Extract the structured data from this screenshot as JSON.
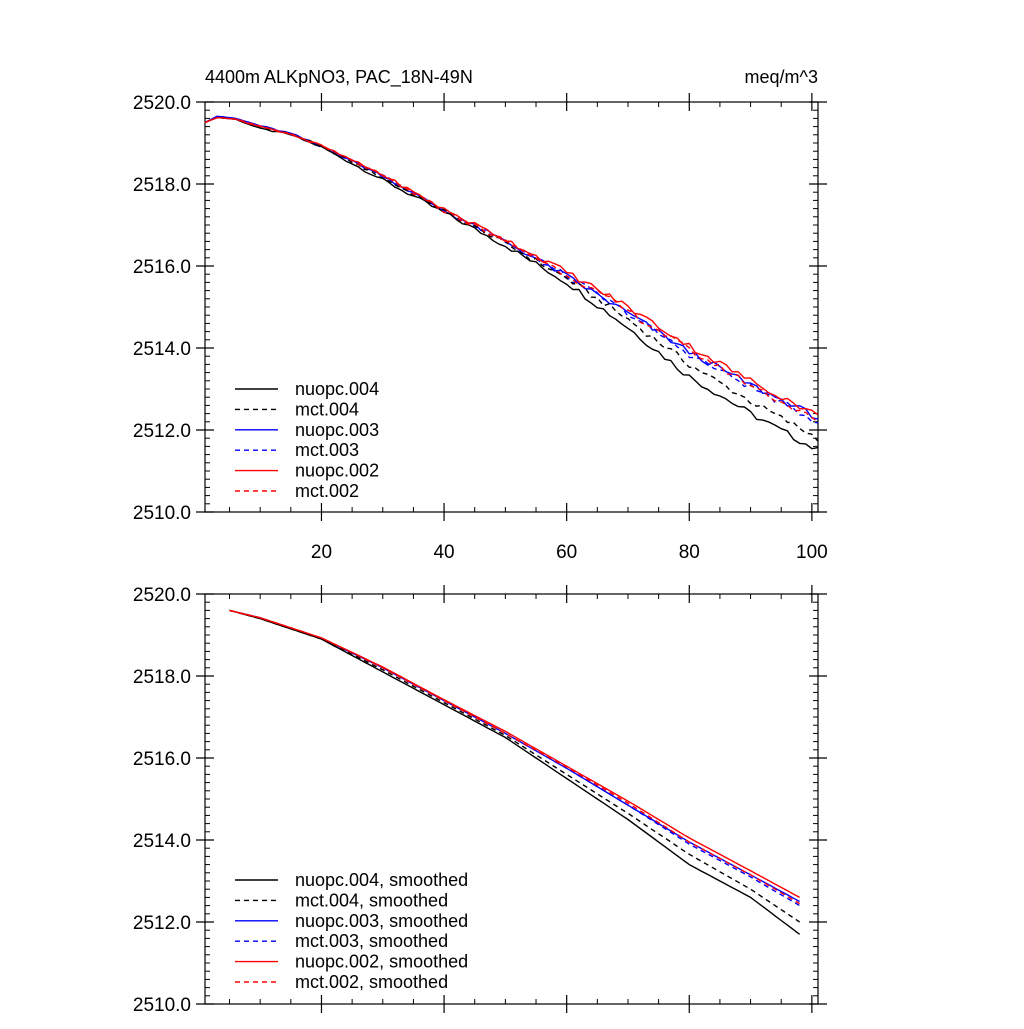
{
  "chart_data": [
    {
      "type": "line",
      "title": "4400m ALKpNO3, PAC_18N-49N",
      "units": "meq/m^3",
      "xlim": [
        1,
        101
      ],
      "ylim": [
        2510,
        2520
      ],
      "xticks": [
        20,
        40,
        60,
        80,
        100
      ],
      "xtick_labels": [
        "20",
        "40",
        "60",
        "80",
        "100"
      ],
      "yticks": [
        2510,
        2512,
        2514,
        2516,
        2518,
        2520
      ],
      "ytick_labels": [
        "2510.0",
        "2512.0",
        "2514.0",
        "2516.0",
        "2518.0",
        "2520.0"
      ],
      "legend_position": "bottom-left",
      "series": [
        {
          "name": "nuopc.004",
          "color": "#000000",
          "dash": "solid",
          "anchors": [
            [
              1,
              2519.5
            ],
            [
              3,
              2519.62
            ],
            [
              6,
              2519.58
            ],
            [
              10,
              2519.35
            ],
            [
              15,
              2519.2
            ],
            [
              20,
              2518.9
            ],
            [
              30,
              2518.1
            ],
            [
              40,
              2517.3
            ],
            [
              50,
              2516.5
            ],
            [
              60,
              2515.6
            ],
            [
              70,
              2514.5
            ],
            [
              80,
              2513.3
            ],
            [
              90,
              2512.4
            ],
            [
              101,
              2511.5
            ]
          ]
        },
        {
          "name": "mct.004",
          "color": "#000000",
          "dash": "dashed",
          "anchors": [
            [
              1,
              2519.5
            ],
            [
              3,
              2519.62
            ],
            [
              6,
              2519.58
            ],
            [
              10,
              2519.38
            ],
            [
              15,
              2519.22
            ],
            [
              20,
              2518.92
            ],
            [
              30,
              2518.15
            ],
            [
              40,
              2517.35
            ],
            [
              50,
              2516.55
            ],
            [
              60,
              2515.7
            ],
            [
              70,
              2514.7
            ],
            [
              80,
              2513.6
            ],
            [
              90,
              2512.7
            ],
            [
              101,
              2511.8
            ]
          ]
        },
        {
          "name": "nuopc.003",
          "color": "#0000ff",
          "dash": "solid",
          "anchors": [
            [
              1,
              2519.5
            ],
            [
              3,
              2519.65
            ],
            [
              6,
              2519.6
            ],
            [
              10,
              2519.42
            ],
            [
              15,
              2519.23
            ],
            [
              20,
              2518.92
            ],
            [
              30,
              2518.2
            ],
            [
              40,
              2517.35
            ],
            [
              50,
              2516.6
            ],
            [
              60,
              2515.75
            ],
            [
              70,
              2514.85
            ],
            [
              80,
              2513.9
            ],
            [
              90,
              2513.1
            ],
            [
              101,
              2512.3
            ]
          ]
        },
        {
          "name": "mct.003",
          "color": "#0000ff",
          "dash": "dashed",
          "anchors": [
            [
              1,
              2519.5
            ],
            [
              3,
              2519.65
            ],
            [
              6,
              2519.6
            ],
            [
              10,
              2519.42
            ],
            [
              15,
              2519.23
            ],
            [
              20,
              2518.92
            ],
            [
              30,
              2518.2
            ],
            [
              40,
              2517.35
            ],
            [
              50,
              2516.6
            ],
            [
              60,
              2515.75
            ],
            [
              70,
              2514.85
            ],
            [
              80,
              2513.85
            ],
            [
              90,
              2513.05
            ],
            [
              101,
              2512.2
            ]
          ]
        },
        {
          "name": "nuopc.002",
          "color": "#ff0000",
          "dash": "solid",
          "anchors": [
            [
              1,
              2519.5
            ],
            [
              3,
              2519.62
            ],
            [
              6,
              2519.58
            ],
            [
              10,
              2519.4
            ],
            [
              15,
              2519.22
            ],
            [
              20,
              2518.93
            ],
            [
              30,
              2518.22
            ],
            [
              40,
              2517.38
            ],
            [
              50,
              2516.65
            ],
            [
              60,
              2515.85
            ],
            [
              70,
              2515.0
            ],
            [
              80,
              2514.05
            ],
            [
              90,
              2513.2
            ],
            [
              101,
              2512.35
            ]
          ]
        },
        {
          "name": "mct.002",
          "color": "#ff0000",
          "dash": "dashed",
          "anchors": [
            [
              1,
              2519.5
            ],
            [
              3,
              2519.62
            ],
            [
              6,
              2519.58
            ],
            [
              10,
              2519.4
            ],
            [
              15,
              2519.22
            ],
            [
              20,
              2518.93
            ],
            [
              30,
              2518.2
            ],
            [
              40,
              2517.35
            ],
            [
              50,
              2516.6
            ],
            [
              60,
              2515.8
            ],
            [
              70,
              2514.9
            ],
            [
              80,
              2513.95
            ],
            [
              90,
              2513.1
            ],
            [
              101,
              2512.2
            ]
          ]
        }
      ]
    },
    {
      "type": "line",
      "title": "",
      "xlim": [
        1,
        101
      ],
      "ylim": [
        2510,
        2520
      ],
      "xticks": [
        20,
        40,
        60,
        80,
        100
      ],
      "xtick_labels": [],
      "yticks": [
        2510,
        2512,
        2514,
        2516,
        2518,
        2520
      ],
      "ytick_labels": [
        "2510.0",
        "2512.0",
        "2514.0",
        "2516.0",
        "2518.0",
        "2520.0"
      ],
      "legend_position": "bottom-left",
      "series": [
        {
          "name": "nuopc.004, smoothed",
          "color": "#000000",
          "dash": "solid",
          "anchors": [
            [
              5,
              2519.6
            ],
            [
              10,
              2519.4
            ],
            [
              20,
              2518.9
            ],
            [
              30,
              2518.1
            ],
            [
              40,
              2517.3
            ],
            [
              50,
              2516.5
            ],
            [
              60,
              2515.5
            ],
            [
              70,
              2514.5
            ],
            [
              80,
              2513.4
            ],
            [
              90,
              2512.6
            ],
            [
              98,
              2511.7
            ]
          ]
        },
        {
          "name": "mct.004, smoothed",
          "color": "#000000",
          "dash": "dashed",
          "anchors": [
            [
              5,
              2519.6
            ],
            [
              10,
              2519.4
            ],
            [
              20,
              2518.9
            ],
            [
              30,
              2518.15
            ],
            [
              40,
              2517.35
            ],
            [
              50,
              2516.55
            ],
            [
              60,
              2515.6
            ],
            [
              70,
              2514.65
            ],
            [
              80,
              2513.65
            ],
            [
              90,
              2512.8
            ],
            [
              98,
              2512.0
            ]
          ]
        },
        {
          "name": "nuopc.003, smoothed",
          "color": "#0000ff",
          "dash": "solid",
          "anchors": [
            [
              5,
              2519.6
            ],
            [
              10,
              2519.42
            ],
            [
              20,
              2518.92
            ],
            [
              30,
              2518.2
            ],
            [
              40,
              2517.4
            ],
            [
              50,
              2516.6
            ],
            [
              60,
              2515.75
            ],
            [
              70,
              2514.85
            ],
            [
              80,
              2513.95
            ],
            [
              90,
              2513.15
            ],
            [
              98,
              2512.5
            ]
          ]
        },
        {
          "name": "mct.003, smoothed",
          "color": "#0000ff",
          "dash": "dashed",
          "anchors": [
            [
              5,
              2519.6
            ],
            [
              10,
              2519.42
            ],
            [
              20,
              2518.92
            ],
            [
              30,
              2518.2
            ],
            [
              40,
              2517.4
            ],
            [
              50,
              2516.6
            ],
            [
              60,
              2515.75
            ],
            [
              70,
              2514.85
            ],
            [
              80,
              2513.9
            ],
            [
              90,
              2513.1
            ],
            [
              98,
              2512.4
            ]
          ]
        },
        {
          "name": "nuopc.002, smoothed",
          "color": "#ff0000",
          "dash": "solid",
          "anchors": [
            [
              5,
              2519.6
            ],
            [
              10,
              2519.42
            ],
            [
              20,
              2518.93
            ],
            [
              30,
              2518.22
            ],
            [
              40,
              2517.42
            ],
            [
              50,
              2516.65
            ],
            [
              60,
              2515.8
            ],
            [
              70,
              2514.95
            ],
            [
              80,
              2514.05
            ],
            [
              90,
              2513.25
            ],
            [
              98,
              2512.6
            ]
          ]
        },
        {
          "name": "mct.002, smoothed",
          "color": "#ff0000",
          "dash": "dashed",
          "anchors": [
            [
              5,
              2519.6
            ],
            [
              10,
              2519.42
            ],
            [
              20,
              2518.93
            ],
            [
              30,
              2518.2
            ],
            [
              40,
              2517.4
            ],
            [
              50,
              2516.6
            ],
            [
              60,
              2515.78
            ],
            [
              70,
              2514.9
            ],
            [
              80,
              2513.95
            ],
            [
              90,
              2513.15
            ],
            [
              98,
              2512.45
            ]
          ]
        }
      ]
    }
  ]
}
